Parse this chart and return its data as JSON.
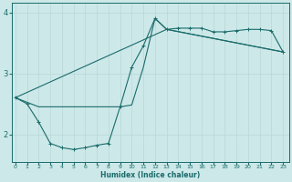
{
  "xlabel": "Humidex (Indice chaleur)",
  "bg_color": "#cde8e8",
  "line_color": "#1a6b6b",
  "grid_color": "#b8d8d8",
  "xlim": [
    -0.3,
    23.5
  ],
  "ylim": [
    1.55,
    4.15
  ],
  "yticks": [
    2,
    3,
    4
  ],
  "ytick_labels": [
    "2",
    "3",
    "4"
  ],
  "xticks": [
    0,
    1,
    2,
    3,
    4,
    5,
    6,
    7,
    8,
    9,
    10,
    11,
    12,
    13,
    14,
    15,
    16,
    17,
    18,
    19,
    20,
    21,
    22,
    23
  ],
  "series1_x": [
    0,
    1,
    2,
    3,
    4,
    5,
    6,
    7,
    8,
    9,
    10,
    11,
    12,
    13,
    14,
    15,
    16,
    17,
    18,
    19,
    20,
    21,
    22,
    23
  ],
  "series1_y": [
    2.6,
    2.5,
    2.2,
    1.85,
    1.78,
    1.75,
    1.78,
    1.82,
    1.85,
    2.45,
    3.1,
    3.45,
    3.9,
    3.72,
    3.74,
    3.74,
    3.74,
    3.68,
    3.68,
    3.7,
    3.72,
    3.72,
    3.7,
    3.35
  ],
  "series2_x": [
    0,
    2,
    3,
    9,
    10,
    11,
    12,
    13,
    23
  ],
  "series2_y": [
    2.6,
    2.45,
    2.45,
    2.45,
    2.48,
    3.1,
    3.9,
    3.72,
    3.35
  ],
  "line3_x": [
    0,
    13,
    23
  ],
  "line3_y": [
    2.6,
    3.72,
    3.35
  ]
}
